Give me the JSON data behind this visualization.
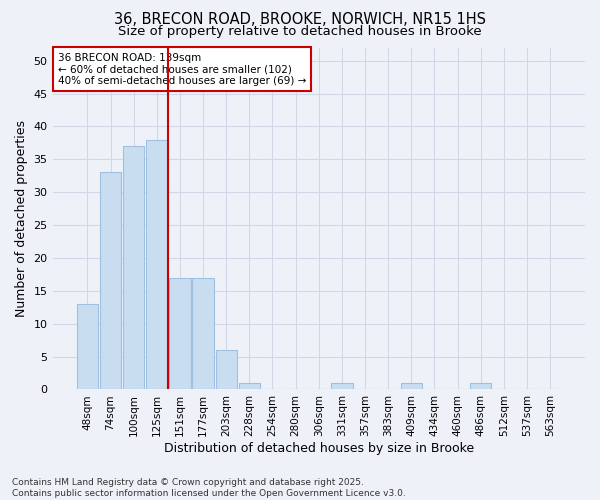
{
  "title_line1": "36, BRECON ROAD, BROOKE, NORWICH, NR15 1HS",
  "title_line2": "Size of property relative to detached houses in Brooke",
  "xlabel": "Distribution of detached houses by size in Brooke",
  "ylabel": "Number of detached properties",
  "categories": [
    "48sqm",
    "74sqm",
    "100sqm",
    "125sqm",
    "151sqm",
    "177sqm",
    "203sqm",
    "228sqm",
    "254sqm",
    "280sqm",
    "306sqm",
    "331sqm",
    "357sqm",
    "383sqm",
    "409sqm",
    "434sqm",
    "460sqm",
    "486sqm",
    "512sqm",
    "537sqm",
    "563sqm"
  ],
  "values": [
    13,
    33,
    37,
    38,
    17,
    17,
    6,
    1,
    0,
    0,
    0,
    1,
    0,
    0,
    1,
    0,
    0,
    1,
    0,
    0,
    0
  ],
  "bar_color": "#c8ddf0",
  "bar_edgecolor": "#a0c0e0",
  "bar_linewidth": 0.8,
  "vline_x": 3.5,
  "vline_color": "#cc0000",
  "vline_linewidth": 1.5,
  "annotation_text": "36 BRECON ROAD: 139sqm\n← 60% of detached houses are smaller (102)\n40% of semi-detached houses are larger (69) →",
  "annotation_box_edgecolor": "#cc0000",
  "annotation_box_facecolor": "#ffffff",
  "ylim": [
    0,
    52
  ],
  "yticks": [
    0,
    5,
    10,
    15,
    20,
    25,
    30,
    35,
    40,
    45,
    50
  ],
  "grid_color": "#d0d8e8",
  "footnote": "Contains HM Land Registry data © Crown copyright and database right 2025.\nContains public sector information licensed under the Open Government Licence v3.0.",
  "background_color": "#eef2f8",
  "plot_bg_color": "#eef2f8",
  "title_fontsize": 10.5,
  "subtitle_fontsize": 9.5,
  "tick_fontsize": 7.5,
  "ylabel_fontsize": 9,
  "xlabel_fontsize": 9,
  "footnote_fontsize": 6.5
}
